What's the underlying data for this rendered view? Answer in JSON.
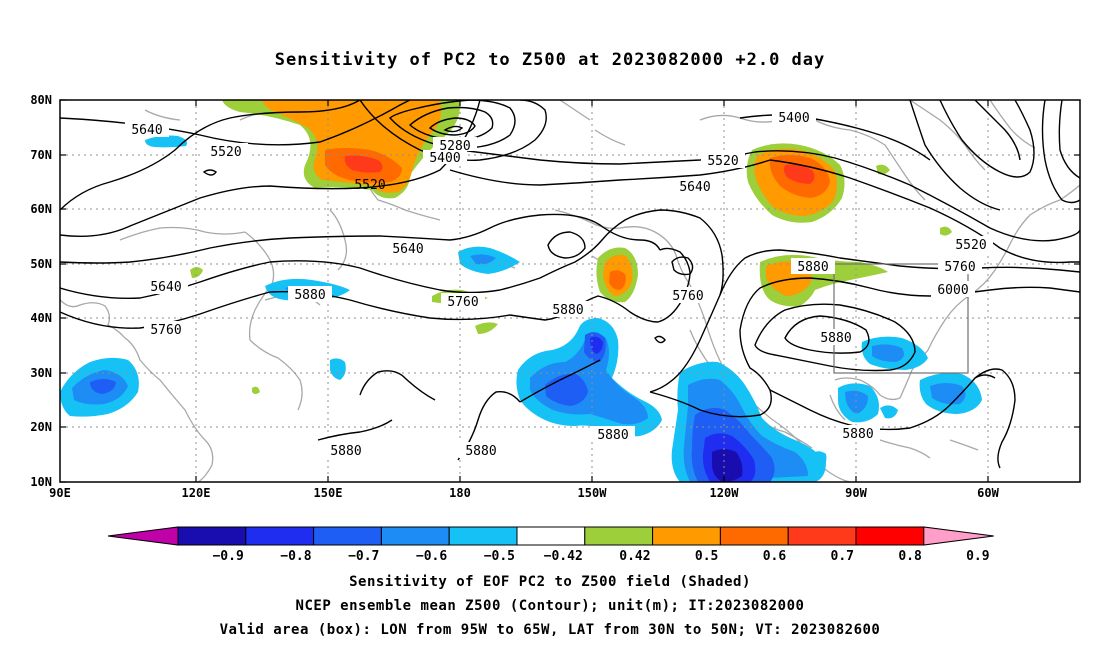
{
  "title": "Sensitivity of PC2 to Z500 at 2023082000 +2.0 day",
  "map": {
    "lat_labels": [
      "80N",
      "70N",
      "60N",
      "50N",
      "40N",
      "30N",
      "20N",
      "10N"
    ],
    "lon_labels": [
      "90E",
      "120E",
      "150E",
      "180",
      "150W",
      "120W",
      "90W",
      "60W"
    ],
    "contour_labels": [
      {
        "id": "c5640a",
        "text": "5640"
      },
      {
        "id": "c5520a",
        "text": "5520"
      },
      {
        "id": "c5280",
        "text": "5280"
      },
      {
        "id": "c5400a",
        "text": "5400"
      },
      {
        "id": "c5520b",
        "text": "5520"
      },
      {
        "id": "c5520c",
        "text": "5520"
      },
      {
        "id": "c5640b",
        "text": "5640"
      },
      {
        "id": "c5400b",
        "text": "5400"
      },
      {
        "id": "c5520d",
        "text": "5520"
      },
      {
        "id": "c5640c",
        "text": "5640"
      },
      {
        "id": "c5640d",
        "text": "5640"
      },
      {
        "id": "c5880a",
        "text": "5880"
      },
      {
        "id": "c5760a",
        "text": "5760"
      },
      {
        "id": "c5760b",
        "text": "5760"
      },
      {
        "id": "c5880b",
        "text": "5880"
      },
      {
        "id": "c5760c",
        "text": "5760"
      },
      {
        "id": "c5880c",
        "text": "5880"
      },
      {
        "id": "c5760d",
        "text": "5760"
      },
      {
        "id": "c6000",
        "text": "6000"
      },
      {
        "id": "c5880d",
        "text": "5880"
      },
      {
        "id": "c5880e",
        "text": "5880"
      },
      {
        "id": "c5880f",
        "text": "5880"
      },
      {
        "id": "c5880g",
        "text": "5880"
      }
    ]
  },
  "colorbar": {
    "labels": [
      "−0.9",
      "−0.8",
      "−0.7",
      "−0.6",
      "−0.5",
      "−0.42",
      "0.42",
      "0.5",
      "0.6",
      "0.7",
      "0.8",
      "0.9"
    ],
    "colors": [
      "#c000a8",
      "#1a0db0",
      "#1e2df0",
      "#1e5ef5",
      "#1e8cf5",
      "#16c2f5",
      "#ffffff",
      "#9ccf3a",
      "#ff9a00",
      "#ff6a00",
      "#ff3a1a",
      "#ff0000",
      "#ff9ec8"
    ]
  },
  "shading_colors": {
    "pos1": "#9ccf3a",
    "pos2": "#ff9a00",
    "pos3": "#ff6a00",
    "pos4": "#ff3a1a",
    "neg1": "#16c2f5",
    "neg2": "#1e8cf5",
    "neg3": "#1e5ef5",
    "neg4": "#1e2df0",
    "neg5": "#1a0db0"
  },
  "captions": {
    "line1": "Sensitivity of EOF PC2 to Z500 field (Shaded)",
    "line2": "NCEP ensemble mean Z500 (Contour); unit(m); IT:2023082000",
    "line3": "Valid area (box): LON from 95W to 65W, LAT from 30N to 50N; VT: 2023082600"
  }
}
